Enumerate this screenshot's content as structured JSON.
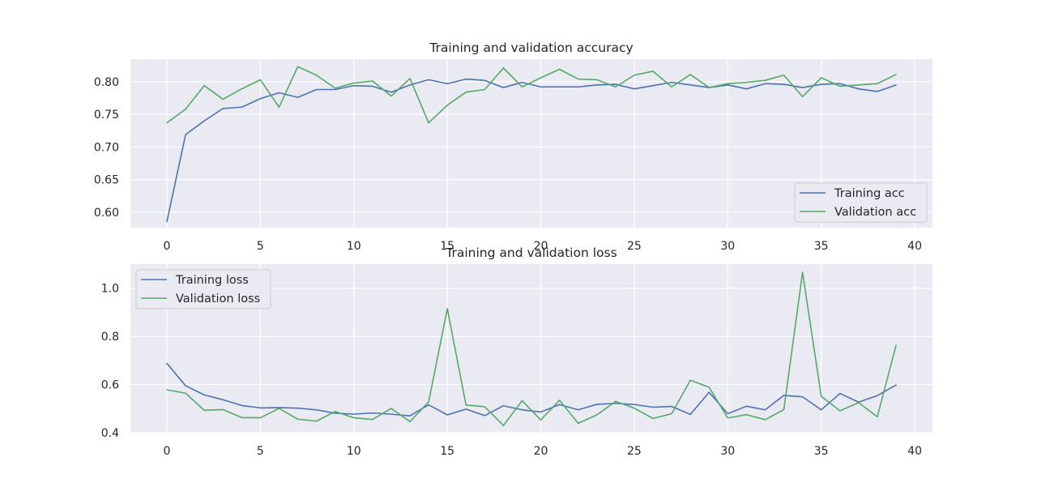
{
  "colors": {
    "background": "#EAEAF2",
    "grid": "#FFFFFF",
    "training": "#4C72B0",
    "validation": "#55A868",
    "text": "#262626"
  },
  "chart_data": [
    {
      "type": "line",
      "title": "Training and validation accuracy",
      "xlabel": "",
      "ylabel": "",
      "xlim": [
        -1.95,
        40.95
      ],
      "ylim": [
        0.5765,
        0.8345
      ],
      "xticks": [
        0,
        5,
        10,
        15,
        20,
        25,
        30,
        35,
        40
      ],
      "yticks": [
        0.6,
        0.65,
        0.7,
        0.75,
        0.8
      ],
      "ytick_labels": [
        "0.60",
        "0.65",
        "0.70",
        "0.75",
        "0.80"
      ],
      "grid": true,
      "legend_position": "lower right",
      "x": [
        0,
        1,
        2,
        3,
        4,
        5,
        6,
        7,
        8,
        9,
        10,
        11,
        12,
        13,
        14,
        15,
        16,
        17,
        18,
        19,
        20,
        21,
        22,
        23,
        24,
        25,
        26,
        27,
        28,
        29,
        30,
        31,
        32,
        33,
        34,
        35,
        36,
        37,
        38,
        39
      ],
      "series": [
        {
          "name": "Training acc",
          "color": "#4C72B0",
          "values": [
            0.586,
            0.719,
            0.74,
            0.759,
            0.761,
            0.774,
            0.783,
            0.776,
            0.788,
            0.788,
            0.794,
            0.793,
            0.784,
            0.795,
            0.803,
            0.797,
            0.804,
            0.802,
            0.791,
            0.799,
            0.792,
            0.792,
            0.792,
            0.795,
            0.796,
            0.789,
            0.794,
            0.799,
            0.795,
            0.791,
            0.795,
            0.789,
            0.797,
            0.796,
            0.791,
            0.796,
            0.797,
            0.789,
            0.785,
            0.795
          ]
        },
        {
          "name": "Validation acc",
          "color": "#55A868",
          "values": [
            0.737,
            0.758,
            0.794,
            0.773,
            0.789,
            0.803,
            0.761,
            0.823,
            0.81,
            0.79,
            0.798,
            0.801,
            0.778,
            0.805,
            0.737,
            0.764,
            0.784,
            0.788,
            0.821,
            0.792,
            0.806,
            0.819,
            0.804,
            0.803,
            0.792,
            0.81,
            0.816,
            0.792,
            0.811,
            0.791,
            0.797,
            0.799,
            0.802,
            0.81,
            0.777,
            0.806,
            0.793,
            0.795,
            0.797,
            0.811
          ]
        }
      ]
    },
    {
      "type": "line",
      "title": "Training and validation loss",
      "xlabel": "",
      "ylabel": "",
      "xlim": [
        -1.95,
        40.95
      ],
      "ylim": [
        0.4,
        1.1
      ],
      "xticks": [
        0,
        5,
        10,
        15,
        20,
        25,
        30,
        35,
        40
      ],
      "yticks": [
        0.4,
        0.6,
        0.8,
        1.0
      ],
      "ytick_labels": [
        "0.4",
        "0.6",
        "0.8",
        "1.0"
      ],
      "grid": true,
      "legend_position": "upper left",
      "x": [
        0,
        1,
        2,
        3,
        4,
        5,
        6,
        7,
        8,
        9,
        10,
        11,
        12,
        13,
        14,
        15,
        16,
        17,
        18,
        19,
        20,
        21,
        22,
        23,
        24,
        25,
        26,
        27,
        28,
        29,
        30,
        31,
        32,
        33,
        34,
        35,
        36,
        37,
        38,
        39
      ],
      "series": [
        {
          "name": "Training loss",
          "color": "#4C72B0",
          "values": [
            0.688,
            0.595,
            0.557,
            0.537,
            0.513,
            0.503,
            0.504,
            0.502,
            0.495,
            0.481,
            0.477,
            0.482,
            0.477,
            0.47,
            0.516,
            0.474,
            0.498,
            0.471,
            0.512,
            0.495,
            0.486,
            0.517,
            0.495,
            0.518,
            0.522,
            0.517,
            0.506,
            0.509,
            0.476,
            0.568,
            0.479,
            0.51,
            0.495,
            0.555,
            0.549,
            0.495,
            0.563,
            0.527,
            0.554,
            0.598
          ]
        },
        {
          "name": "Validation loss",
          "color": "#55A868",
          "values": [
            0.578,
            0.564,
            0.493,
            0.496,
            0.463,
            0.462,
            0.501,
            0.456,
            0.448,
            0.488,
            0.462,
            0.455,
            0.501,
            0.446,
            0.528,
            0.915,
            0.515,
            0.508,
            0.43,
            0.533,
            0.453,
            0.535,
            0.439,
            0.474,
            0.53,
            0.502,
            0.459,
            0.479,
            0.618,
            0.589,
            0.461,
            0.475,
            0.454,
            0.496,
            1.066,
            0.551,
            0.491,
            0.525,
            0.466,
            0.763
          ]
        }
      ]
    }
  ]
}
